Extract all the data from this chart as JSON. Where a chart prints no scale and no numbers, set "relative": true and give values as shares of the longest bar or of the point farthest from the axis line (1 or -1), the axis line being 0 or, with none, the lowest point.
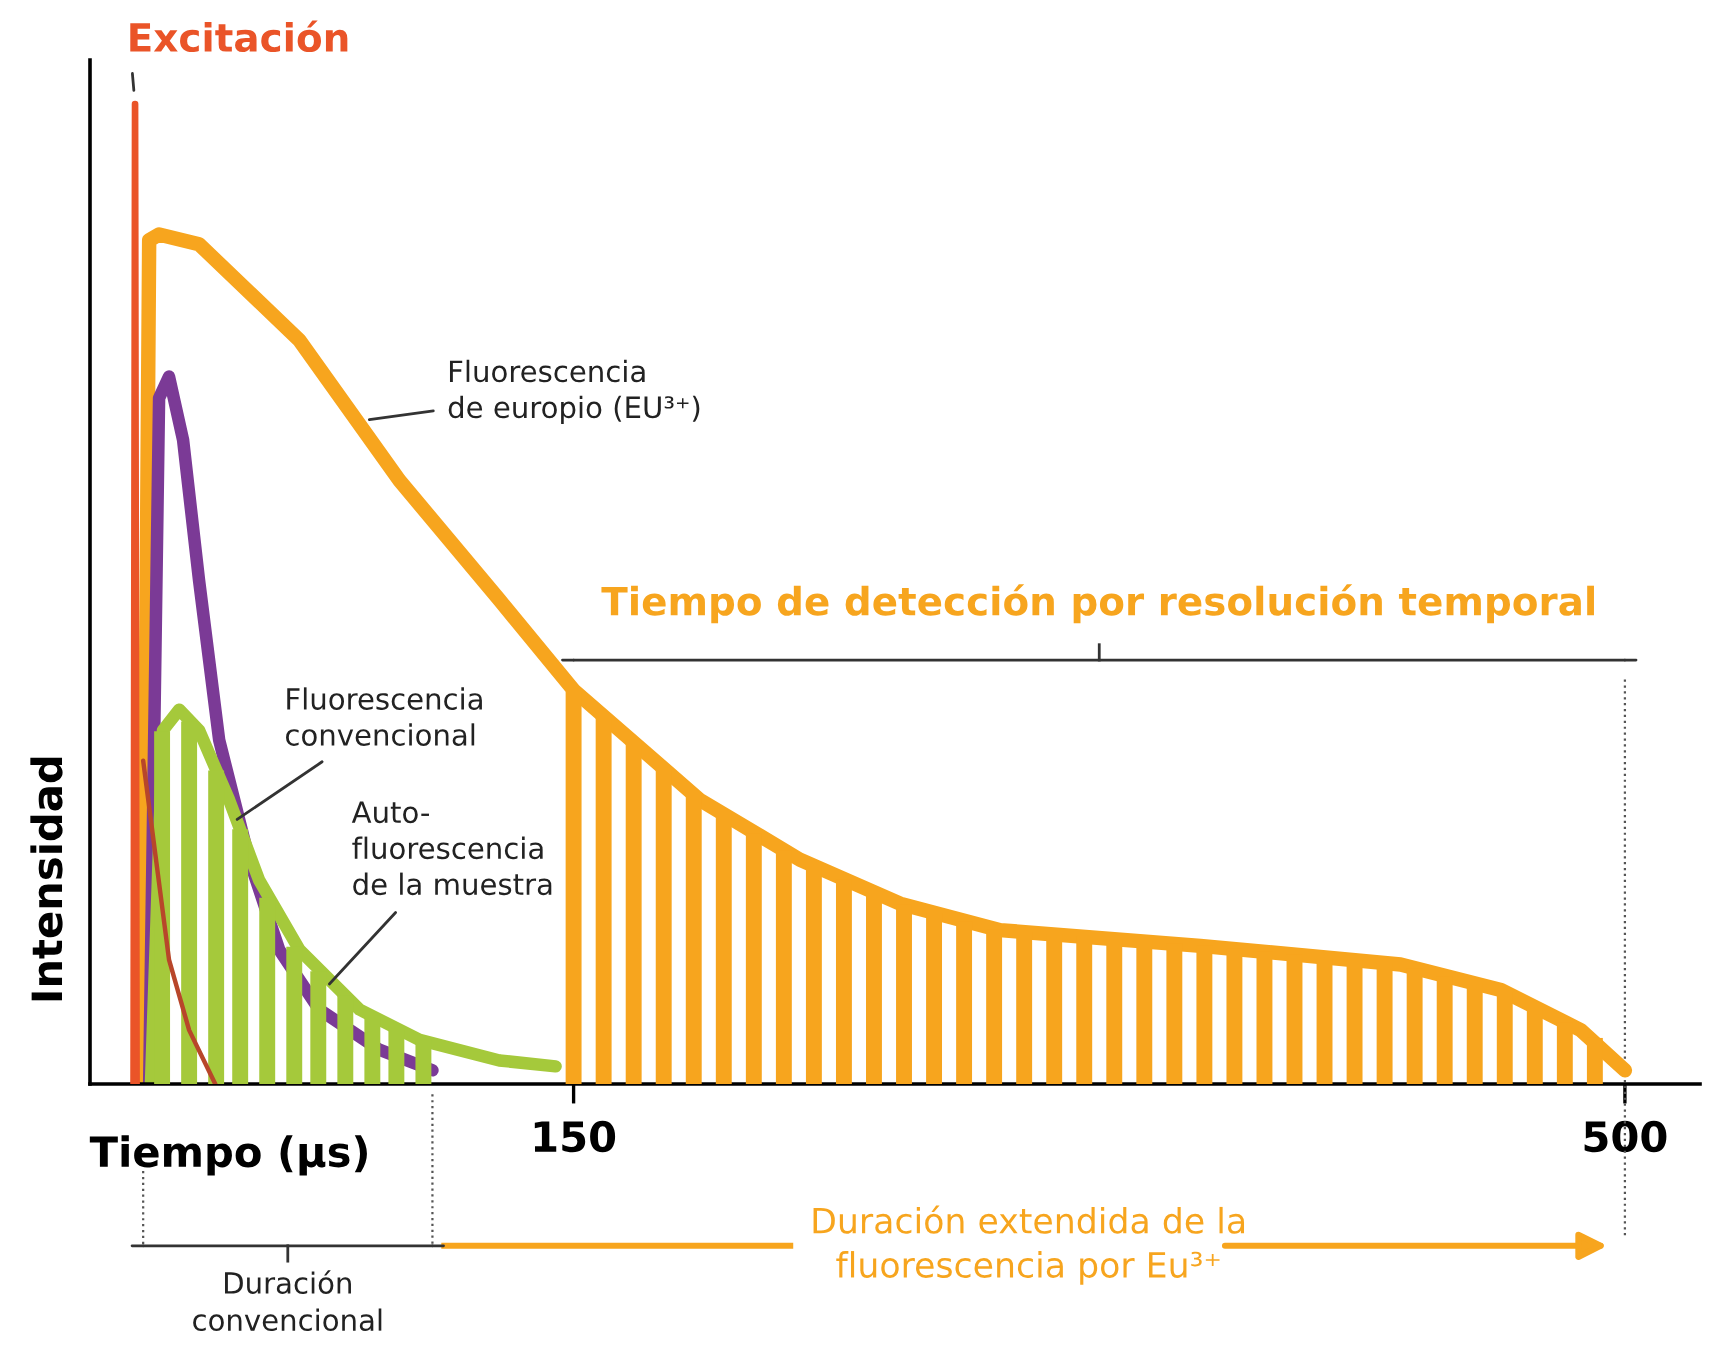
{
  "chart_data": {
    "type": "line",
    "relative": true,
    "xlabel": "Tiempo (µs)",
    "ylabel": "Intensidad",
    "xlim": [
      -11,
      525
    ],
    "xticks": [
      150,
      500
    ],
    "grid": false,
    "marker": "none",
    "line_style": "solid",
    "series": [
      {
        "type": "bar",
        "color": "#f7a51e",
        "x": [
          150,
          160,
          170,
          180,
          190,
          200,
          210,
          220,
          230,
          240,
          250,
          260,
          270,
          280,
          290,
          300,
          310,
          320,
          330,
          340,
          350,
          360,
          370,
          380,
          390,
          400,
          410,
          420,
          430,
          440,
          450,
          460,
          470,
          480,
          490
        ],
        "values": [
          0.4,
          0.375,
          0.35,
          0.32,
          0.295,
          0.275,
          0.256,
          0.238,
          0.222,
          0.209,
          0.196,
          0.183,
          0.175,
          0.166,
          0.158,
          0.155,
          0.153,
          0.151,
          0.148,
          0.146,
          0.143,
          0.141,
          0.138,
          0.135,
          0.132,
          0.129,
          0.126,
          0.123,
          0.118,
          0.11,
          0.103,
          0.094,
          0.079,
          0.063,
          0.047
        ]
      },
      {
        "type": "bar",
        "color": "#a5c93b",
        "x": [
          13,
          22,
          31,
          39,
          48,
          57,
          65,
          74,
          83,
          91,
          100
        ],
        "values": [
          0.36,
          0.37,
          0.32,
          0.26,
          0.19,
          0.14,
          0.115,
          0.09,
          0.07,
          0.055,
          0.045
        ]
      },
      {
        "color": "#f7a51e",
        "x": [
          6.7,
          8.7,
          12,
          25.3,
          58.7,
          92,
          125.3,
          150,
          192,
          225.3,
          258.7,
          292,
          358.7,
          425.3,
          458.7,
          485.3,
          500
        ],
        "values": [
          0.004,
          0.861,
          0.867,
          0.857,
          0.759,
          0.616,
          0.494,
          0.402,
          0.29,
          0.229,
          0.184,
          0.157,
          0.141,
          0.122,
          0.096,
          0.055,
          0.014
        ]
      },
      {
        "color": "#7b3a96",
        "x": [
          8.7,
          12,
          15.3,
          20,
          25.3,
          32,
          42,
          52,
          65.3,
          85.3,
          103
        ],
        "values": [
          0,
          0.7,
          0.722,
          0.657,
          0.514,
          0.351,
          0.229,
          0.137,
          0.076,
          0.035,
          0.014
        ]
      },
      {
        "color": "#a5c93b",
        "x": [
          9.3,
          13.3,
          18.7,
          25.3,
          35.3,
          45.3,
          58.7,
          78.7,
          98.7,
          125.3,
          144
        ],
        "values": [
          0,
          0.361,
          0.382,
          0.361,
          0.29,
          0.208,
          0.137,
          0.076,
          0.045,
          0.024,
          0.018
        ]
      },
      {
        "color": "#ea5428",
        "x": [
          3.5,
          4,
          4.5
        ],
        "values": [
          0,
          1,
          0
        ]
      },
      {
        "color": "#b8462a",
        "x": [
          6.7,
          15.3,
          22,
          30.7
        ],
        "values": [
          0.33,
          0.127,
          0.055,
          0
        ]
      }
    ],
    "ref_lines": [
      {
        "axis": "x",
        "value": 500,
        "line_style": "dotted",
        "color": "#555555"
      }
    ],
    "annotations": [
      {
        "text": "Excitación",
        "x": 4,
        "y": 1
      },
      {
        "text": "Fluorescencia\nde europio (EU³⁺)",
        "x": 82,
        "y": 0.678
      },
      {
        "text": "Fluorescencia\nconvencional",
        "x": 38,
        "y": 0.27
      },
      {
        "text": "Auto-\nfluorescencia\nde la muestra",
        "x": 68.7,
        "y": 0.102
      },
      "Tiempo de detección por resolución temporal",
      "Duración\nconvencional",
      "Duración extendida de la\nfluorescencia por Eu³⁺"
    ]
  }
}
